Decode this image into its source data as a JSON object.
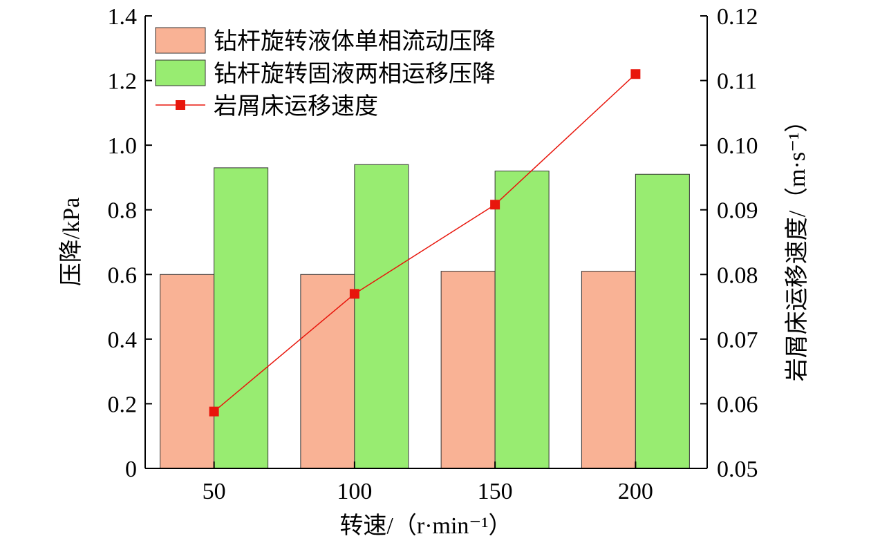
{
  "chart_data": {
    "type": "bar+line",
    "categories": [
      "50",
      "100",
      "150",
      "200"
    ],
    "series": [
      {
        "name": "钻杆旋转液体单相流动压降",
        "type": "bar",
        "axis": "left",
        "color": "#f9b295",
        "values": [
          0.6,
          0.6,
          0.61,
          0.61
        ]
      },
      {
        "name": "钻杆旋转固液两相运移压降",
        "type": "bar",
        "axis": "left",
        "color": "#98ec71",
        "values": [
          0.93,
          0.94,
          0.92,
          0.91
        ]
      },
      {
        "name": "岩屑床运移速度",
        "type": "line",
        "axis": "right",
        "color": "#e8160c",
        "marker": "square",
        "values": [
          0.0588,
          0.077,
          0.0908,
          0.111
        ]
      }
    ],
    "xlabel": "转速/（r·min⁻¹）",
    "ylabel": "压降/kPa",
    "y2label": "岩屑床运移速度/（m·s⁻¹）",
    "ylim": [
      0,
      1.4
    ],
    "yticks": [
      "0",
      "0.2",
      "0.4",
      "0.6",
      "0.8",
      "1.0",
      "1.2",
      "1.4"
    ],
    "y2lim": [
      0.05,
      0.12
    ],
    "y2ticks": [
      "0.05",
      "0.06",
      "0.07",
      "0.08",
      "0.09",
      "0.10",
      "0.11",
      "0.12"
    ],
    "legend_position": "top-left",
    "grid": false
  }
}
